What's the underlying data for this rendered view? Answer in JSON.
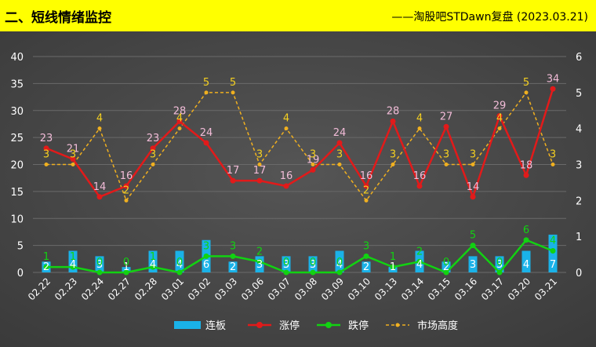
{
  "header": {
    "title": "二、短线情绪监控",
    "subtitle": "——淘股吧STDawn复盘 (2023.03.21)"
  },
  "colors": {
    "header_bg": "#ffff00",
    "plot_bg": "#3a3a3a",
    "lianban": "#1ab2e8",
    "zhangting": "#e21a1a",
    "dieting": "#12d212",
    "shichang": "#f0b020",
    "label_pink": "#f2bcd8"
  },
  "chart_data": {
    "type": "bar+line",
    "categories": [
      "02.22",
      "02.23",
      "02.24",
      "02.27",
      "02.28",
      "03.01",
      "03.02",
      "03.03",
      "03.06",
      "03.07",
      "03.08",
      "03.09",
      "03.10",
      "03.13",
      "03.14",
      "03.15",
      "03.16",
      "03.17",
      "03.20",
      "03.21"
    ],
    "y_left": {
      "min": 0,
      "max": 40,
      "ticks": [
        "0",
        "5",
        "10",
        "15",
        "20",
        "25",
        "30",
        "35",
        "40"
      ]
    },
    "y_right": {
      "min": 0,
      "max": 6,
      "ticks": [
        "0",
        "1",
        "2",
        "3",
        "4",
        "5",
        "6"
      ]
    },
    "series": [
      {
        "name": "连板",
        "type": "bar",
        "axis": "left",
        "values": [
          2,
          4,
          3,
          1,
          4,
          4,
          6,
          2,
          3,
          3,
          3,
          4,
          2,
          1,
          4,
          2,
          3,
          3,
          4,
          7
        ]
      },
      {
        "name": "涨停",
        "type": "line",
        "axis": "left",
        "values": [
          23,
          21,
          14,
          16,
          23,
          28,
          24,
          17,
          17,
          16,
          19,
          24,
          16,
          28,
          16,
          27,
          14,
          29,
          18,
          34
        ]
      },
      {
        "name": "跌停",
        "type": "line",
        "axis": "left",
        "values": [
          1,
          1,
          0,
          0,
          1,
          0,
          3,
          3,
          2,
          0,
          0,
          0,
          3,
          1,
          2,
          0,
          5,
          0,
          6,
          4
        ]
      },
      {
        "name": "市场高度",
        "type": "line-dashed",
        "axis": "right",
        "values": [
          3,
          3,
          4,
          2,
          3,
          4,
          5,
          5,
          3,
          4,
          3,
          3,
          2,
          3,
          4,
          3,
          3,
          4,
          5,
          3
        ]
      }
    ],
    "legend_position": "bottom",
    "grid": true
  }
}
